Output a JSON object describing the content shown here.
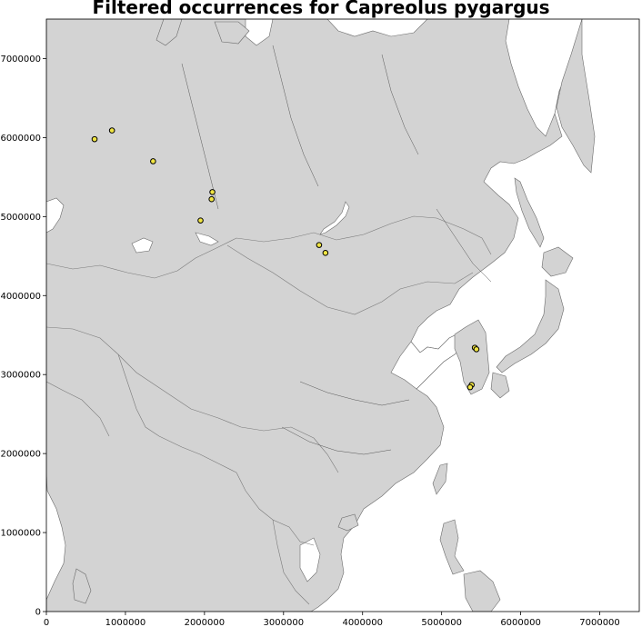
{
  "title": "Filtered occurrences for Capreolus pygargus",
  "colors": {
    "land": "#d3d3d3",
    "ocean": "#ffffff",
    "border": "#7a7a7a",
    "river": "#555555",
    "point_fill": "#f0e442",
    "point_edge": "#000000"
  },
  "chart_data": {
    "type": "scatter",
    "title": "Filtered occurrences for Capreolus pygargus",
    "xlabel": "",
    "ylabel": "",
    "xlim": [
      0,
      7500000
    ],
    "ylim": [
      0,
      7500000
    ],
    "grid": false,
    "x_ticks": [
      0,
      1000000,
      2000000,
      3000000,
      4000000,
      5000000,
      6000000,
      7000000
    ],
    "y_ticks": [
      0,
      1000000,
      2000000,
      3000000,
      4000000,
      5000000,
      6000000,
      7000000
    ],
    "x_tick_labels": [
      "0",
      "1000000",
      "2000000",
      "3000000",
      "4000000",
      "5000000",
      "6000000",
      "7000000"
    ],
    "y_tick_labels": [
      "0",
      "1000000",
      "2000000",
      "3000000",
      "4000000",
      "5000000",
      "6000000",
      "7000000"
    ],
    "points": [
      {
        "x": 610000,
        "y": 5980000
      },
      {
        "x": 830000,
        "y": 6090000
      },
      {
        "x": 1350000,
        "y": 5700000
      },
      {
        "x": 2100000,
        "y": 5310000
      },
      {
        "x": 2090000,
        "y": 5220000
      },
      {
        "x": 1950000,
        "y": 4950000
      },
      {
        "x": 3450000,
        "y": 4640000
      },
      {
        "x": 3530000,
        "y": 4540000
      },
      {
        "x": 5420000,
        "y": 3340000
      },
      {
        "x": 5440000,
        "y": 3320000
      },
      {
        "x": 5380000,
        "y": 2870000
      },
      {
        "x": 5360000,
        "y": 2840000
      }
    ]
  }
}
